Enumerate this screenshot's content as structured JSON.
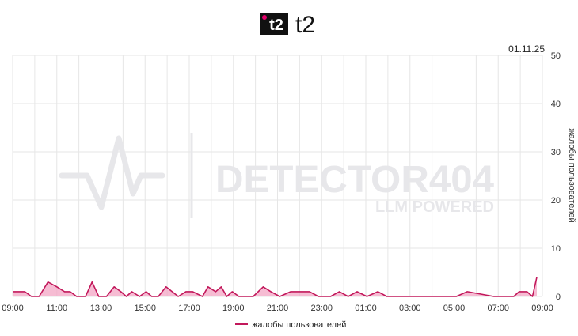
{
  "brand": {
    "logo_text": "t2",
    "name": "t2",
    "logo_color": "#111111",
    "logo_dot_color": "#e4006b"
  },
  "watermark": {
    "title": "DETECTOR404",
    "subtitle": "LLM POWERED",
    "color": "#e7e7ea"
  },
  "chart_data": {
    "type": "area",
    "date_label": "01.11.25",
    "ylabel": "жалобы пользователей",
    "ylim": [
      0,
      50
    ],
    "y_ticks": [
      0,
      10,
      20,
      30,
      40,
      50
    ],
    "y_axis_position": "right",
    "xlim": [
      0,
      24
    ],
    "x_ticks": [
      {
        "h": 0,
        "label": "09:00"
      },
      {
        "h": 2,
        "label": "11:00"
      },
      {
        "h": 4,
        "label": "13:00"
      },
      {
        "h": 6,
        "label": "15:00"
      },
      {
        "h": 8,
        "label": "17:00"
      },
      {
        "h": 10,
        "label": "19:00"
      },
      {
        "h": 12,
        "label": "21:00"
      },
      {
        "h": 14,
        "label": "23:00"
      },
      {
        "h": 16,
        "label": "01:00"
      },
      {
        "h": 18,
        "label": "03:00"
      },
      {
        "h": 20,
        "label": "05:00"
      },
      {
        "h": 22,
        "label": "07:00"
      },
      {
        "h": 24,
        "label": "09:00"
      }
    ],
    "grid": true,
    "legend_position": "bottom-center",
    "series": [
      {
        "name": "жалобы пользователей",
        "color": "#c2185b",
        "fill": "#f3a6c4",
        "x": [
          0,
          0.55,
          0.85,
          1.2,
          1.6,
          2.0,
          2.35,
          2.6,
          2.9,
          3.3,
          3.6,
          3.9,
          4.25,
          4.6,
          4.9,
          5.15,
          5.4,
          5.75,
          6.05,
          6.3,
          6.6,
          6.95,
          7.5,
          7.85,
          8.15,
          8.6,
          8.85,
          9.2,
          9.45,
          9.7,
          9.95,
          10.25,
          10.9,
          11.35,
          11.7,
          12.1,
          12.6,
          13.1,
          13.45,
          13.85,
          14.4,
          14.8,
          15.2,
          15.6,
          16.05,
          16.55,
          16.95,
          19.5,
          20.1,
          20.6,
          21.8,
          22.4,
          22.7,
          22.95,
          23.3,
          23.55,
          23.75
        ],
        "values": [
          1,
          1,
          0,
          0,
          3,
          2,
          1,
          1,
          0,
          0,
          3,
          0,
          0,
          2,
          1,
          0,
          1,
          0,
          1,
          0,
          0,
          2,
          0,
          1,
          1,
          0,
          2,
          1,
          2,
          0,
          1,
          0,
          0,
          2,
          1,
          0,
          1,
          1,
          1,
          0,
          0,
          1,
          0,
          1,
          0,
          1,
          0,
          0,
          0,
          1,
          0,
          0,
          0,
          1,
          1,
          0,
          4
        ]
      }
    ]
  },
  "legend": {
    "label": "жалобы пользователей"
  }
}
